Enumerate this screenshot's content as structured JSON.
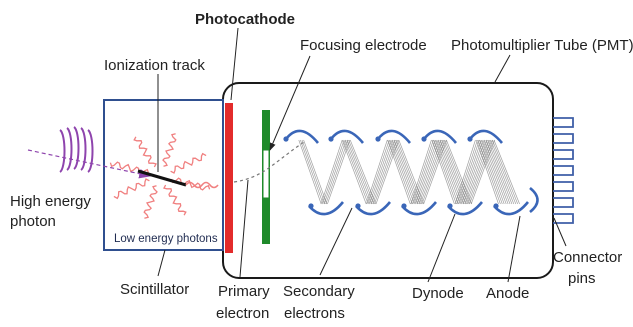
{
  "labels": {
    "photocathode": "Photocathode",
    "focusing_electrode": "Focusing electrode",
    "pmt": "Photomultiplier Tube (PMT)",
    "ionization_track": "Ionization track",
    "high_energy_photon_line1": "High energy",
    "high_energy_photon_line2": "photon",
    "low_energy_photons": "Low energy photons",
    "scintillator": "Scintillator",
    "primary_electron_line1": "Primary",
    "primary_electron_line2": "electron",
    "secondary_electrons_line1": "Secondary",
    "secondary_electrons_line2": "electrons",
    "dynode": "Dynode",
    "anode": "Anode",
    "connector_pins_line1": "Connector",
    "connector_pins_line2": "pins"
  },
  "colors": {
    "tube_outline": "#1a1a1a",
    "scintillator_border": "#2f4f8f",
    "photocathode": "#e32b2b",
    "focusing_electrode": "#1f8a2a",
    "incoming_photon": "#8e44ad",
    "low_energy_photon": "#f08080",
    "dynode": "#3a66b8",
    "connector_pins": "#3f5fa8",
    "electron_cascade": "#8a8a8a"
  },
  "counts": {
    "dynodes": 10,
    "connector_pins": 7,
    "low_energy_photons": 8
  }
}
